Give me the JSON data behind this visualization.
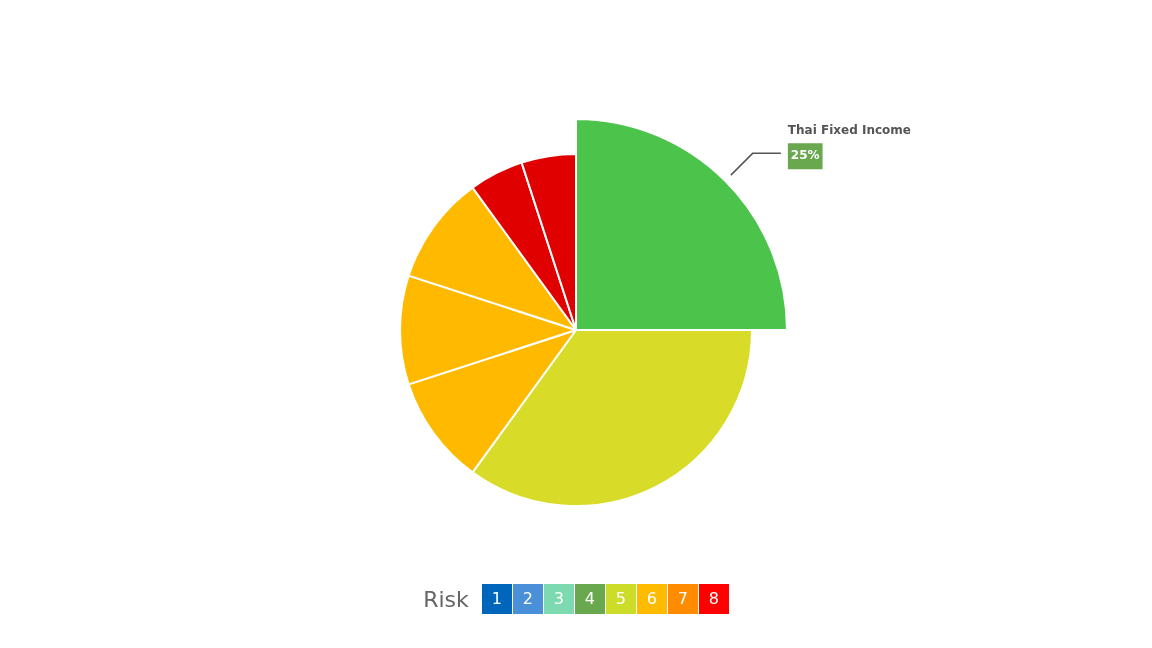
{
  "chart_data": {
    "type": "pie",
    "categories": [
      "Thai Fixed Income",
      null,
      null,
      null,
      null,
      null,
      null
    ],
    "values": [
      25,
      35,
      10,
      10,
      10,
      5,
      5
    ],
    "colors": [
      "#4cc44c",
      "#d8dc28",
      "#ffba00",
      "#ffba00",
      "#ffba00",
      "#e00000",
      "#e00000"
    ],
    "value_labels": [
      "25%",
      null,
      null,
      null,
      null,
      null,
      null
    ],
    "legend_title": "Risk",
    "annotations": [
      "1",
      "2",
      "3",
      "4",
      "5",
      "6",
      "7",
      "8"
    ]
  }
}
